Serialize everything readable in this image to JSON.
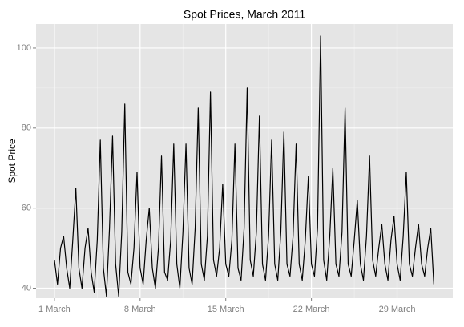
{
  "chart_data": {
    "type": "line",
    "title": "Spot Prices, March 2011",
    "y_label": "Spot Price",
    "x": [
      1,
      1.25,
      1.5,
      1.75,
      2,
      2.25,
      2.5,
      2.75,
      3,
      3.25,
      3.5,
      3.75,
      4,
      4.25,
      4.5,
      4.75,
      5,
      5.25,
      5.5,
      5.75,
      6,
      6.25,
      6.5,
      6.75,
      7,
      7.25,
      7.5,
      7.75,
      8,
      8.25,
      8.5,
      8.75,
      9,
      9.25,
      9.5,
      9.75,
      10,
      10.25,
      10.5,
      10.75,
      11,
      11.25,
      11.5,
      11.75,
      12,
      12.25,
      12.5,
      12.75,
      13,
      13.25,
      13.5,
      13.75,
      14,
      14.25,
      14.5,
      14.75,
      15,
      15.25,
      15.5,
      15.75,
      16,
      16.25,
      16.5,
      16.75,
      17,
      17.25,
      17.5,
      17.75,
      18,
      18.25,
      18.5,
      18.75,
      19,
      19.25,
      19.5,
      19.75,
      20,
      20.25,
      20.5,
      20.75,
      21,
      21.25,
      21.5,
      21.75,
      22,
      22.25,
      22.5,
      22.75,
      23,
      23.25,
      23.5,
      23.75,
      24,
      24.25,
      24.5,
      24.75,
      25,
      25.25,
      25.5,
      25.75,
      26,
      26.25,
      26.5,
      26.75,
      27,
      27.25,
      27.5,
      27.75,
      28,
      28.25,
      28.5,
      28.75,
      29,
      29.25,
      29.5,
      29.75,
      30,
      30.25,
      30.5,
      30.75,
      31,
      31.25,
      31.5,
      31.75,
      32
    ],
    "values": [
      47,
      41,
      50,
      53,
      45,
      40,
      52,
      65,
      45,
      40,
      50,
      55,
      44,
      39,
      52,
      77,
      45,
      38,
      55,
      78,
      46,
      38,
      54,
      86,
      44,
      41,
      50,
      69,
      45,
      41,
      52,
      60,
      45,
      40,
      50,
      73,
      44,
      42,
      52,
      76,
      46,
      40,
      54,
      76,
      45,
      41,
      55,
      85,
      46,
      42,
      53,
      89,
      47,
      43,
      50,
      66,
      46,
      43,
      52,
      76,
      45,
      42,
      55,
      90,
      47,
      43,
      54,
      83,
      46,
      42,
      53,
      77,
      46,
      42,
      54,
      79,
      46,
      43,
      53,
      76,
      46,
      42,
      52,
      68,
      46,
      43,
      55,
      103,
      47,
      42,
      53,
      70,
      46,
      43,
      54,
      85,
      46,
      43,
      52,
      62,
      46,
      42,
      53,
      73,
      47,
      43,
      50,
      56,
      46,
      42,
      52,
      58,
      46,
      42,
      53,
      69,
      46,
      43,
      50,
      56,
      46,
      43,
      50,
      55,
      41
    ],
    "color": "#000000",
    "xlim": [
      -0.5,
      33.55
    ],
    "xticks": [
      {
        "value": 1,
        "label": "1 March"
      },
      {
        "value": 8,
        "label": "8 March"
      },
      {
        "value": 15,
        "label": "15 March"
      },
      {
        "value": 22,
        "label": "22 March"
      },
      {
        "value": 29,
        "label": "29 March"
      }
    ],
    "ylim": [
      37.5,
      106
    ],
    "yticks": [
      40,
      60,
      80,
      100
    ],
    "grid": true
  }
}
